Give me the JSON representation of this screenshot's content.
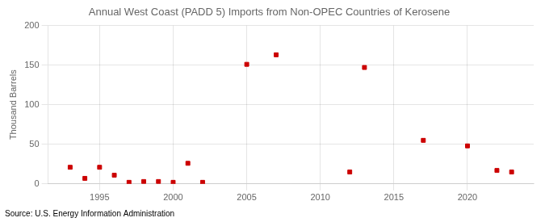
{
  "chart_data": {
    "type": "scatter",
    "title": "Annual West Coast (PADD 5) Imports from Non-OPEC Countries of Kerosene",
    "ylabel": "Thousand Barrels",
    "annotations": [
      "Source: U.S. Energy Information Administration"
    ],
    "x": [
      1993,
      1994,
      1995,
      1996,
      1997,
      1998,
      1999,
      2000,
      2001,
      2002,
      2005,
      2007,
      2012,
      2013,
      2017,
      2020,
      2022,
      2023
    ],
    "values": [
      21,
      7,
      21,
      11,
      2,
      3,
      3,
      2,
      26,
      2,
      151,
      163,
      15,
      147,
      55,
      48,
      17,
      15
    ],
    "color": "#cc0000",
    "marker": "square",
    "xlim": [
      1991.5,
      2024.5
    ],
    "xticks": [
      1995,
      2000,
      2005,
      2010,
      2015,
      2020
    ],
    "ylim": [
      0,
      200
    ],
    "yticks": [
      0,
      50,
      100,
      150,
      200
    ],
    "grid": true
  }
}
